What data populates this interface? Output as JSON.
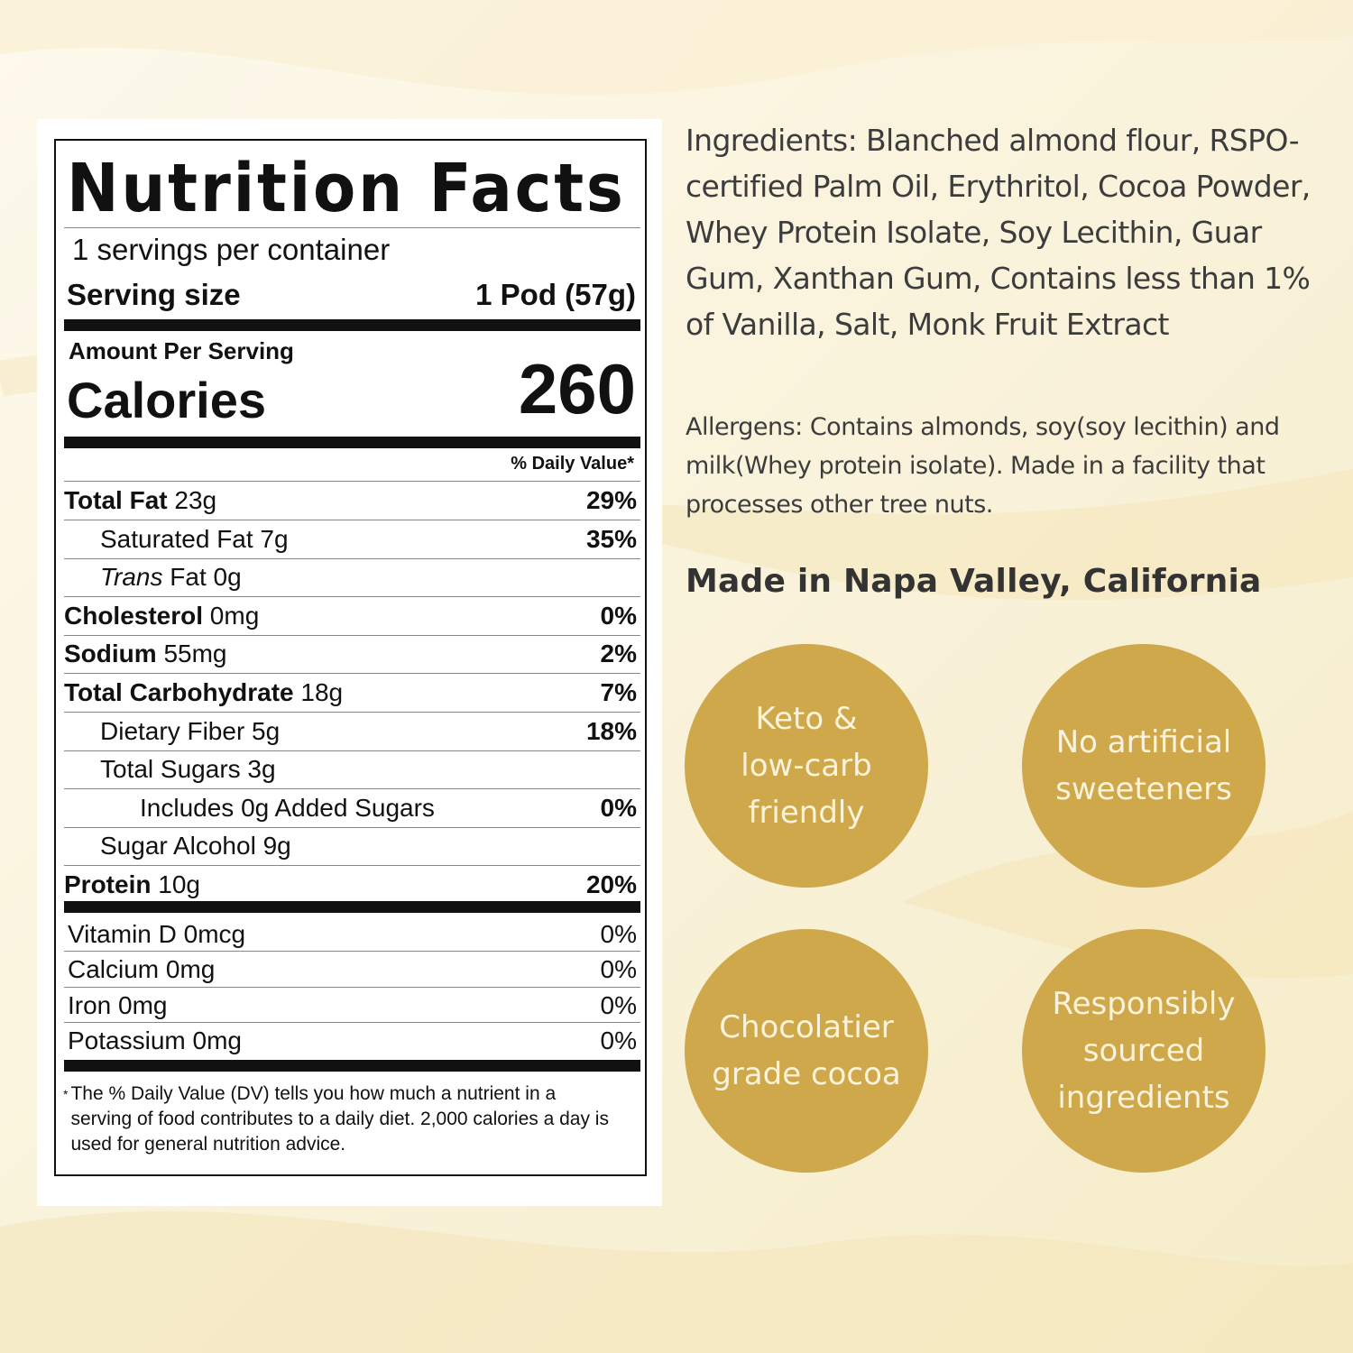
{
  "nutrition": {
    "title": "Nutrition Facts",
    "servings": "1 servings per container",
    "serving_size_label": "Serving size",
    "serving_size_value": "1 Pod (57g)",
    "amount_per_serving": "Amount Per Serving",
    "calories_label": "Calories",
    "calories_value": "260",
    "dv_header": "% Daily Value*",
    "rows": [
      {
        "bold": "Total Fat",
        "rest": " 23g",
        "pct": "29%"
      },
      {
        "bold": "",
        "rest": "Saturated Fat 7g",
        "pct": "35%"
      },
      {
        "italic": "Trans",
        "rest": " Fat 0g",
        "pct": ""
      },
      {
        "bold": "Cholesterol",
        "rest": " 0mg",
        "pct": "0%"
      },
      {
        "bold": "Sodium",
        "rest": " 55mg",
        "pct": "2%"
      },
      {
        "bold": "Total Carbohydrate",
        "rest": " 18g",
        "pct": "7%"
      },
      {
        "bold": "",
        "rest": "Dietary Fiber 5g",
        "pct": "18%"
      },
      {
        "bold": "",
        "rest": "Total Sugars 3g",
        "pct": ""
      },
      {
        "bold": "",
        "rest": "Includes 0g Added Sugars",
        "pct": "0%"
      },
      {
        "bold": "",
        "rest": "Sugar Alcohol 9g",
        "pct": ""
      },
      {
        "bold": "Protein",
        "rest": " 10g",
        "pct": "20%"
      }
    ],
    "vitamins": [
      {
        "name": "Vitamin D 0mcg",
        "pct": "0%"
      },
      {
        "name": "Calcium 0mg",
        "pct": "0%"
      },
      {
        "name": "Iron 0mg",
        "pct": "0%"
      },
      {
        "name": "Potassium 0mg",
        "pct": "0%"
      }
    ],
    "footnote_star": "*",
    "footnote": "The % Daily Value (DV) tells you how much a nutrient in a serving of food contributes to a daily diet. 2,000 calories a day is used for general nutrition advice."
  },
  "ingredients": "Ingredients: Blanched almond flour, RSPO-certified Palm Oil, Erythritol, Cocoa Powder, Whey Protein Isolate, Soy Lecithin, Guar Gum, Xanthan Gum, Contains less than 1% of Vanilla, Salt, Monk Fruit Extract",
  "allergens": "Allergens: Contains almonds, soy(soy lecithin) and milk(Whey protein isolate). Made in a facility that processes other tree nuts.",
  "origin": "Made in Napa Valley, California",
  "badges": [
    "Keto &\nlow-carb\nfriendly",
    "No artificial\nsweeteners",
    "Chocolatier\ngrade cocoa",
    "Responsibly\nsourced\ningredients"
  ],
  "colors": {
    "badge": "#cfa84b",
    "badge_text": "#fbf3dc",
    "background": "#fbf6e4",
    "text": "#3c3c3c"
  }
}
